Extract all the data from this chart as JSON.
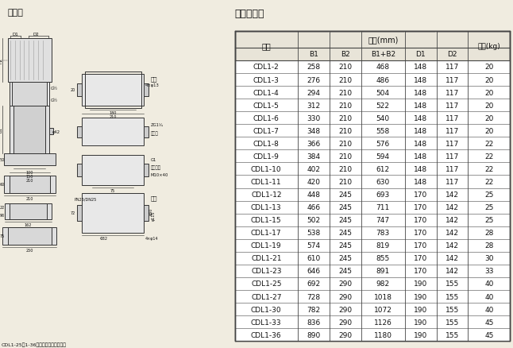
{
  "title_left": "安装图",
  "title_right": "尺寸和重量",
  "table_data": [
    [
      "CDL1-2",
      258,
      210,
      468,
      148,
      117,
      20
    ],
    [
      "CDL1-3",
      276,
      210,
      486,
      148,
      117,
      20
    ],
    [
      "CDL1-4",
      294,
      210,
      504,
      148,
      117,
      20
    ],
    [
      "CDL1-5",
      312,
      210,
      522,
      148,
      117,
      20
    ],
    [
      "CDL1-6",
      330,
      210,
      540,
      148,
      117,
      20
    ],
    [
      "CDL1-7",
      348,
      210,
      558,
      148,
      117,
      20
    ],
    [
      "CDL1-8",
      366,
      210,
      576,
      148,
      117,
      22
    ],
    [
      "CDL1-9",
      384,
      210,
      594,
      148,
      117,
      22
    ],
    [
      "CDL1-10",
      402,
      210,
      612,
      148,
      117,
      22
    ],
    [
      "CDL1-11",
      420,
      210,
      630,
      148,
      117,
      22
    ],
    [
      "CDL1-12",
      448,
      245,
      693,
      170,
      142,
      25
    ],
    [
      "CDL1-13",
      466,
      245,
      711,
      170,
      142,
      25
    ],
    [
      "CDL1-15",
      502,
      245,
      747,
      170,
      142,
      25
    ],
    [
      "CDL1-17",
      538,
      245,
      783,
      170,
      142,
      28
    ],
    [
      "CDL1-19",
      574,
      245,
      819,
      170,
      142,
      28
    ],
    [
      "CDL1-21",
      610,
      245,
      855,
      170,
      142,
      30
    ],
    [
      "CDL1-23",
      646,
      245,
      891,
      170,
      142,
      33
    ],
    [
      "CDL1-25",
      692,
      290,
      982,
      190,
      155,
      40
    ],
    [
      "CDL1-27",
      728,
      290,
      1018,
      190,
      155,
      40
    ],
    [
      "CDL1-30",
      782,
      290,
      1072,
      190,
      155,
      40
    ],
    [
      "CDL1-33",
      836,
      290,
      1126,
      190,
      155,
      45
    ],
    [
      "CDL1-36",
      890,
      290,
      1180,
      190,
      155,
      45
    ]
  ],
  "footnote": "CDL1-25～1-36无螺圆法兰型管路联接",
  "bg_color": "#f0ece0",
  "border_color": "#444444",
  "text_color": "#111111",
  "lc": "#333333"
}
